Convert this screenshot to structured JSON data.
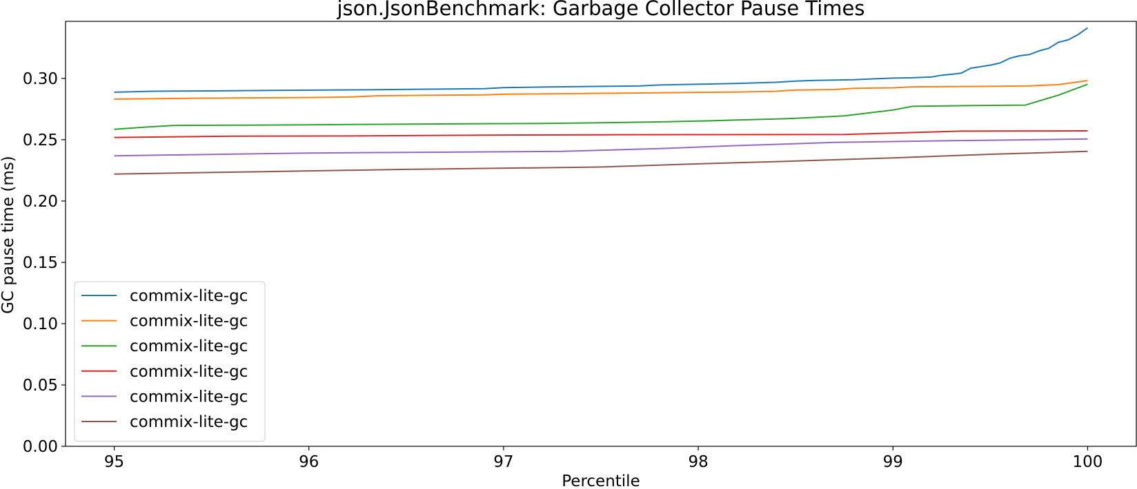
{
  "chart_data": {
    "type": "line",
    "title": "json.JsonBenchmark: Garbage Collector Pause Times",
    "xlabel": "Percentile",
    "ylabel": "GC pause time (ms)",
    "xlim": [
      94.75,
      100.25
    ],
    "ylim": [
      0.0,
      0.3465
    ],
    "xticks": [
      95,
      96,
      97,
      98,
      99,
      100
    ],
    "xtick_labels": [
      "95",
      "96",
      "97",
      "98",
      "99",
      "100"
    ],
    "yticks": [
      0.0,
      0.05,
      0.1,
      0.15,
      0.2,
      0.25,
      0.3
    ],
    "ytick_labels": [
      "0.00",
      "0.05",
      "0.10",
      "0.15",
      "0.20",
      "0.25",
      "0.30"
    ],
    "grid": false,
    "legend_position": "lower-left",
    "series": [
      {
        "name": "commix-lite-gc",
        "color": "#1f77b4",
        "x": [
          95.0,
          95.2,
          95.5,
          95.8,
          96.0,
          96.3,
          96.6,
          96.9,
          97.0,
          97.2,
          97.5,
          97.7,
          97.8,
          98.0,
          98.2,
          98.4,
          98.5,
          98.6,
          98.8,
          98.9,
          99.0,
          99.1,
          99.2,
          99.25,
          99.3,
          99.35,
          99.4,
          99.5,
          99.55,
          99.6,
          99.65,
          99.7,
          99.75,
          99.8,
          99.85,
          99.9,
          99.95,
          100.0
        ],
        "y": [
          0.2887,
          0.2895,
          0.2898,
          0.2902,
          0.2904,
          0.2907,
          0.2912,
          0.2916,
          0.2924,
          0.2929,
          0.2935,
          0.2938,
          0.2946,
          0.2952,
          0.2959,
          0.2968,
          0.2978,
          0.2983,
          0.2989,
          0.2996,
          0.3002,
          0.3005,
          0.3012,
          0.3026,
          0.3033,
          0.3042,
          0.3083,
          0.3108,
          0.3126,
          0.3164,
          0.3184,
          0.3194,
          0.3224,
          0.3245,
          0.3294,
          0.3314,
          0.3356,
          0.3413
        ]
      },
      {
        "name": "commix-lite-gc",
        "color": "#ff7f0e",
        "x": [
          95.0,
          95.2,
          95.4,
          95.7,
          96.0,
          96.2,
          96.35,
          96.6,
          96.9,
          97.0,
          97.3,
          97.5,
          97.8,
          98.0,
          98.2,
          98.4,
          98.5,
          98.7,
          98.8,
          99.0,
          99.1,
          99.4,
          99.7,
          99.85,
          100.0
        ],
        "y": [
          0.2831,
          0.2834,
          0.2838,
          0.2841,
          0.2844,
          0.2848,
          0.2858,
          0.2862,
          0.2865,
          0.2871,
          0.2875,
          0.2878,
          0.2882,
          0.2886,
          0.2889,
          0.2895,
          0.2905,
          0.2909,
          0.2919,
          0.2923,
          0.2931,
          0.2934,
          0.2938,
          0.2949,
          0.2982
        ]
      },
      {
        "name": "commix-lite-gc",
        "color": "#2ca02c",
        "x": [
          95.0,
          95.15,
          95.3,
          95.6,
          96.0,
          96.3,
          96.7,
          97.2,
          97.5,
          97.8,
          98.0,
          98.2,
          98.45,
          98.6,
          98.75,
          99.0,
          99.1,
          99.4,
          99.68,
          99.85,
          100.0
        ],
        "y": [
          0.2585,
          0.2601,
          0.2616,
          0.2618,
          0.2621,
          0.2625,
          0.2629,
          0.2633,
          0.2638,
          0.2645,
          0.2652,
          0.2661,
          0.2671,
          0.2682,
          0.2694,
          0.2742,
          0.2772,
          0.2778,
          0.2782,
          0.2863,
          0.2952
        ]
      },
      {
        "name": "commix-lite-gc",
        "color": "#d62728",
        "x": [
          95.0,
          95.6,
          96.3,
          96.9,
          97.5,
          98.0,
          98.75,
          99.0,
          99.35,
          100.0
        ],
        "y": [
          0.2518,
          0.2528,
          0.2531,
          0.2537,
          0.254,
          0.2541,
          0.2543,
          0.2554,
          0.257,
          0.2572
        ]
      },
      {
        "name": "commix-lite-gc",
        "color": "#9467bd",
        "x": [
          95.0,
          96.0,
          97.3,
          97.8,
          98.2,
          98.7,
          99.3,
          100.0
        ],
        "y": [
          0.2369,
          0.2391,
          0.2405,
          0.2428,
          0.2452,
          0.2478,
          0.2492,
          0.2506
        ]
      },
      {
        "name": "commix-lite-gc",
        "color": "#8c564b",
        "x": [
          95.0,
          95.5,
          96.5,
          97.5,
          98.0,
          98.5,
          99.0,
          99.5,
          100.0
        ],
        "y": [
          0.222,
          0.2233,
          0.2258,
          0.2277,
          0.2303,
          0.2326,
          0.2352,
          0.2381,
          0.2405
        ]
      }
    ]
  }
}
